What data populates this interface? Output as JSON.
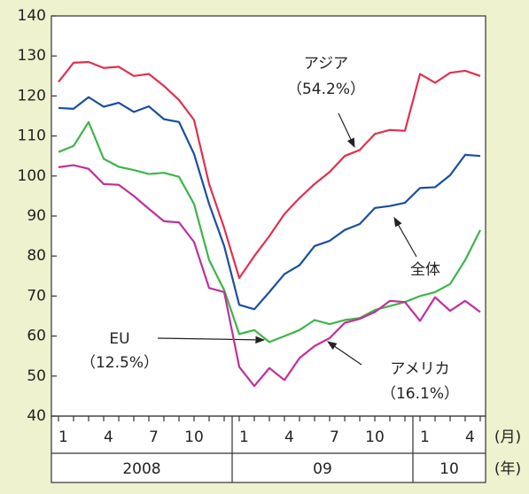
{
  "chart_data": {
    "type": "line",
    "categories": [
      "1",
      null,
      null,
      "4",
      null,
      null,
      "7",
      null,
      null,
      "10",
      null,
      null,
      "1",
      null,
      null,
      "4",
      null,
      null,
      "7",
      null,
      null,
      "10",
      null,
      null,
      "1",
      null,
      null,
      "4",
      null
    ],
    "years": [
      "2008",
      "09",
      "10"
    ],
    "x_unit": "(月)",
    "year_unit": "(年)",
    "ylim": [
      40,
      140
    ],
    "yticks": [
      40,
      50,
      60,
      70,
      80,
      90,
      100,
      110,
      120,
      130,
      140
    ],
    "series": [
      {
        "name": "アジア",
        "color": "#e2304d",
        "values": [
          123.5,
          128.3,
          128.5,
          127,
          127.3,
          125,
          125.5,
          122.5,
          119,
          114,
          98,
          87,
          74.5,
          80,
          85,
          90.5,
          94.5,
          98,
          101,
          105,
          106.5,
          110.5,
          111.5,
          111.3,
          125.5,
          123.3,
          125.8,
          126.3,
          125
        ]
      },
      {
        "name": "全体",
        "color": "#1a4fa0",
        "values": [
          117,
          116.8,
          119.7,
          117.3,
          118.3,
          116,
          117.4,
          114.2,
          113.5,
          105.5,
          93,
          82.5,
          67.8,
          66.7,
          71,
          75.5,
          77.7,
          82.5,
          83.8,
          86.5,
          88,
          92,
          92.5,
          93.3,
          97,
          97.2,
          100.2,
          105.3,
          105
        ]
      },
      {
        "name": "EU",
        "color": "#3db54a",
        "values": [
          106,
          107.5,
          113.5,
          104.3,
          102.3,
          101.5,
          100.5,
          100.8,
          99.8,
          93,
          79,
          71.5,
          60.5,
          61.5,
          58.5,
          60,
          61.5,
          64,
          63,
          64,
          64.5,
          66.5,
          67.5,
          68.5,
          70,
          71,
          73,
          79,
          86.5
        ]
      },
      {
        "name": "アメリカ",
        "color": "#c0309a",
        "values": [
          102.2,
          102.7,
          101.8,
          98,
          97.8,
          95,
          91.8,
          88.7,
          88.4,
          83.5,
          72,
          71,
          52.3,
          47.5,
          52,
          49,
          54.5,
          57.5,
          59.5,
          63.3,
          64.3,
          66,
          68.8,
          68.5,
          63.8,
          69.7,
          66.3,
          68.8,
          66
        ]
      }
    ],
    "annotations": [
      {
        "text": "アジア"
      },
      {
        "text": "（54.2%）"
      },
      {
        "text": "全体"
      },
      {
        "text": "EU"
      },
      {
        "text": "（12.5%）"
      },
      {
        "text": "アメリカ"
      },
      {
        "text": "（16.1%）"
      }
    ]
  }
}
